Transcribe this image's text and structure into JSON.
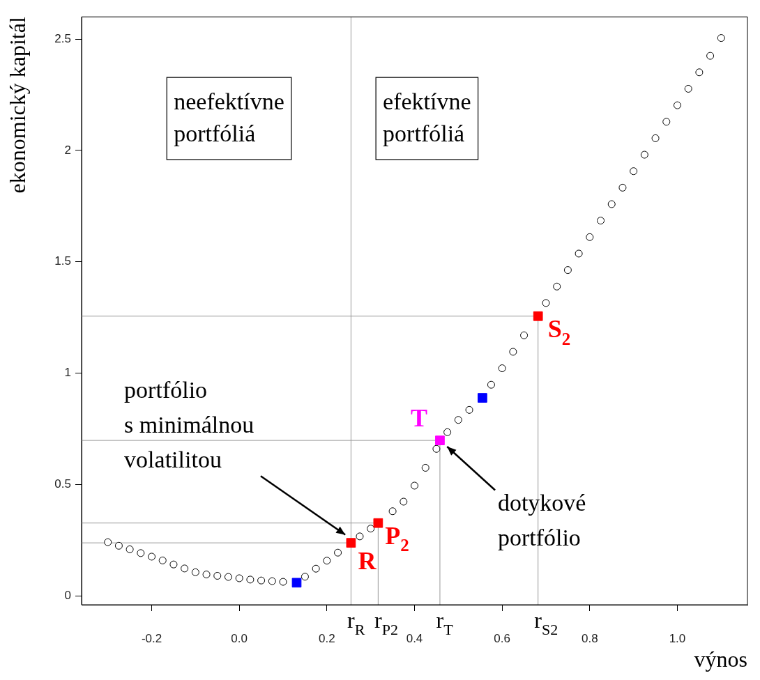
{
  "chart_data": {
    "type": "scatter",
    "xlabel": "výnos",
    "ylabel": "ekonomický kapitál",
    "xlim": [
      -0.36,
      1.16
    ],
    "ylim": [
      -0.04,
      2.6
    ],
    "xticks": [
      {
        "value": -0.2,
        "label": "-0.2"
      },
      {
        "value": 0,
        "label": "0.0"
      },
      {
        "value": 0.2,
        "label": "0.2"
      },
      {
        "value": 0.4,
        "label": "0.4"
      },
      {
        "value": 0.6,
        "label": "0.6"
      },
      {
        "value": 0.8,
        "label": "0.8"
      },
      {
        "value": 1,
        "label": "1.0"
      }
    ],
    "yticks": [
      0,
      0.5,
      1,
      1.5,
      2,
      2.5
    ],
    "series": [
      {
        "color": "#000000",
        "marker": "circle",
        "x": [
          -0.3,
          -0.275,
          -0.25,
          -0.225,
          -0.2,
          -0.175,
          -0.15,
          -0.125,
          -0.1,
          -0.075,
          -0.05,
          -0.025,
          0,
          0.025,
          0.05,
          0.075,
          0.1,
          0.125,
          0.15,
          0.175,
          0.2,
          0.225,
          0.25,
          0.275,
          0.3,
          0.325,
          0.35,
          0.375,
          0.4,
          0.425,
          0.45,
          0.475,
          0.5,
          0.525,
          0.55,
          0.575,
          0.6,
          0.625,
          0.65,
          0.675,
          0.7,
          0.725,
          0.75,
          0.775,
          0.8,
          0.825,
          0.85,
          0.875,
          0.9,
          0.925,
          0.95,
          0.975,
          1,
          1.025,
          1.05,
          1.075,
          1.1
        ],
        "values": [
          0.241,
          0.225,
          0.209,
          0.192,
          0.176,
          0.159,
          0.141,
          0.123,
          0.106,
          0.096,
          0.09,
          0.085,
          0.079,
          0.073,
          0.069,
          0.066,
          0.063,
          null,
          0.086,
          0.122,
          0.158,
          0.194,
          null,
          0.267,
          0.302,
          null,
          0.38,
          0.423,
          0.495,
          0.575,
          0.66,
          0.735,
          0.79,
          0.835,
          null,
          0.948,
          1.022,
          1.096,
          1.17,
          null,
          1.315,
          1.389,
          1.463,
          1.537,
          1.611,
          1.685,
          1.759,
          1.833,
          1.907,
          1.981,
          2.055,
          2.129,
          2.203,
          2.277,
          2.351,
          2.425,
          2.505
        ]
      },
      {
        "color": "#0000ff",
        "marker": "square",
        "x": [
          0.131,
          0.555
        ],
        "values": [
          0.059,
          0.889
        ]
      },
      {
        "name": "R",
        "color": "#ff0000",
        "marker": "square",
        "x": [
          0.255
        ],
        "values": [
          0.238
        ]
      },
      {
        "name": "P$_{2}$",
        "color": "#ff0000",
        "marker": "square",
        "x": [
          0.317
        ],
        "values": [
          0.327
        ]
      },
      {
        "name": "T",
        "color": "#ff00ff",
        "marker": "square",
        "x": [
          0.458
        ],
        "values": [
          0.698
        ]
      },
      {
        "name": "S$_{2}$",
        "color": "#ff0000",
        "marker": "square",
        "x": [
          0.682
        ],
        "values": [
          1.256
        ]
      }
    ],
    "ref_lines": [
      {
        "axis": "x",
        "value": 0.255,
        "label": "r$_{R}$",
        "color": "#999999"
      },
      {
        "axis": "x",
        "value": 0.317,
        "label": "r$_{P2}$",
        "color": "#999999"
      },
      {
        "axis": "x",
        "value": 0.458,
        "label": "r$_{T}$",
        "color": "#999999"
      },
      {
        "axis": "x",
        "value": 0.682,
        "label": "r$_{S2}$",
        "color": "#999999"
      },
      {
        "axis": "y",
        "value": 0.327,
        "color": "#999999"
      },
      {
        "axis": "y",
        "value": 0.698,
        "color": "#999999"
      },
      {
        "axis": "y",
        "value": 1.256,
        "color": "#999999"
      },
      {
        "axis": "y",
        "value": 0.238,
        "color": "#999999"
      }
    ],
    "annotations": [
      "neefektívne\nportfóliá",
      "efektívne\nportfóliá",
      "portfólio\ns minimálnou\nvolatilitou",
      "dotykové\nportfólio"
    ]
  }
}
